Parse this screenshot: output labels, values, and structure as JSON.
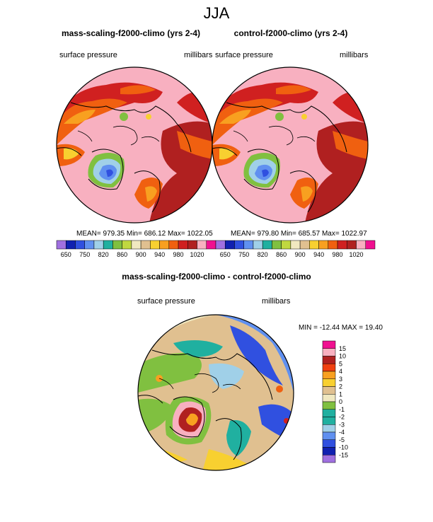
{
  "page_title": "JJA",
  "panels": [
    {
      "title": "mass-scaling-f2000-climo (yrs 2-4)",
      "left_label": "surface pressure",
      "right_label": "millibars",
      "stats": "MEAN= 979.35  Min= 686.12  Max= 1022.05"
    },
    {
      "title": "control-f2000-climo (yrs 2-4)",
      "left_label": "surface pressure",
      "right_label": "millibars",
      "stats": "MEAN= 979.80  Min= 685.57  Max= 1022.97"
    }
  ],
  "diff_panel": {
    "title": "mass-scaling-f2000-climo - control-f2000-climo",
    "left_label": "surface pressure",
    "right_label": "millibars",
    "stats": "MIN = -12.44 MAX =  19.40"
  },
  "colorbar_top": {
    "labels": [
      "650",
      "750",
      "820",
      "860",
      "900",
      "940",
      "980",
      "1020"
    ],
    "colors": [
      "#a070e0",
      "#1020b0",
      "#3050e0",
      "#6090f0",
      "#a0d0e8",
      "#20b0a0",
      "#80c040",
      "#c0d840",
      "#f0e8c0",
      "#e0c090",
      "#f8d030",
      "#f8a020",
      "#f06010",
      "#d02020",
      "#b02020",
      "#f8b0c0",
      "#f01090"
    ]
  },
  "colorbar_diff": {
    "labels": [
      "15",
      "10",
      "5",
      "4",
      "3",
      "2",
      "1",
      "0",
      "-1",
      "-2",
      "-3",
      "-4",
      "-5",
      "-10",
      "-15"
    ],
    "colors": [
      "#f01090",
      "#f8b0c0",
      "#b02020",
      "#f04010",
      "#f8a020",
      "#f8d030",
      "#e0c090",
      "#f0e8c0",
      "#80c040",
      "#20b0a0",
      "#20b0a0",
      "#a0d0e8",
      "#6090f0",
      "#3050e0",
      "#1020b0",
      "#a070e0"
    ]
  }
}
